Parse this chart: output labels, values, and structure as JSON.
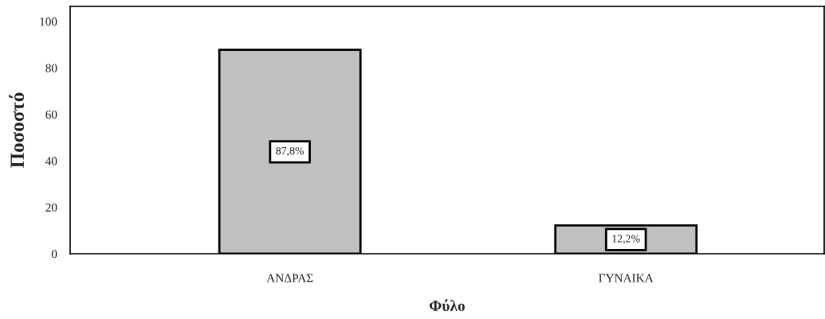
{
  "chart_data": {
    "type": "bar",
    "xlabel": "Φύλο",
    "ylabel": "Ποσοστό",
    "categories": [
      "ΑΝΔΡΑΣ",
      "ΓΥΝΑΙΚΑ"
    ],
    "values": [
      87.8,
      12.2
    ],
    "color": "#c0c0c0",
    "value_labels": [
      "87,8%",
      "12,2%"
    ],
    "ylim": [
      0,
      106.5
    ],
    "yticks": [
      0,
      20,
      40,
      60,
      80,
      100
    ],
    "grid": false
  }
}
